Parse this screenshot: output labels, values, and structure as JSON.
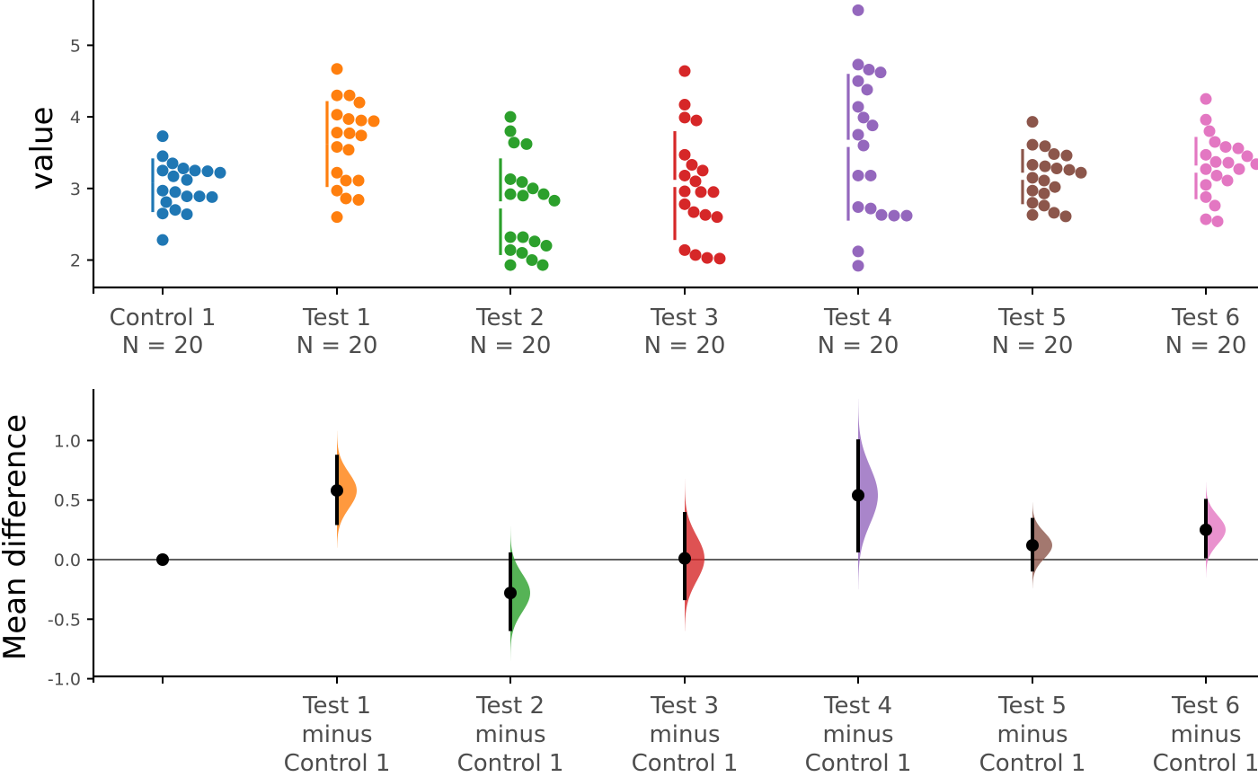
{
  "chart_data": [
    {
      "type": "scatter",
      "ylabel": "value",
      "ylim": [
        1.6,
        5.55
      ],
      "yticks": [
        2,
        3,
        4,
        5
      ],
      "grid": false,
      "categories": [
        {
          "name": "Control 1",
          "n_label": "N = 20",
          "color": "#1f77b4",
          "gap_bar": [
            2.67,
            3.08,
            3.08,
            3.42
          ],
          "values": [
            3.73,
            3.45,
            3.35,
            3.22,
            3.17,
            3.12,
            2.97,
            2.88,
            2.81,
            2.64,
            2.28,
            3.24,
            3.25,
            3.28,
            3.25,
            2.95,
            2.89,
            2.7,
            2.65,
            2.89
          ]
        },
        {
          "name": "Test 1",
          "n_label": "N = 20",
          "color": "#ff7f0e",
          "gap_bar": [
            3.02,
            3.62,
            3.62,
            4.22
          ],
          "values": [
            4.67,
            4.3,
            4.2,
            4.03,
            3.94,
            3.74,
            3.54,
            3.22,
            3.11,
            2.97,
            2.84,
            2.6,
            4.3,
            3.95,
            3.77,
            3.58,
            3.11,
            2.86,
            3.97,
            3.78
          ]
        },
        {
          "name": "Test 2",
          "n_label": "N = 20",
          "color": "#2ca02c",
          "gap_bar": [
            2.07,
            2.72,
            2.82,
            3.42
          ],
          "values": [
            4.0,
            3.8,
            3.62,
            3.09,
            3.0,
            2.83,
            2.2,
            2.1,
            1.93,
            3.64,
            3.13,
            2.9,
            2.26,
            2.14,
            2.0,
            1.93,
            2.92,
            2.32,
            2.92,
            2.32
          ]
        },
        {
          "name": "Test 3",
          "n_label": "N = 20",
          "color": "#d62728",
          "gap_bar": [
            2.28,
            3.02,
            3.12,
            3.8
          ],
          "values": [
            4.64,
            4.17,
            3.95,
            3.47,
            3.25,
            3.1,
            2.95,
            2.78,
            2.6,
            2.02,
            3.99,
            3.33,
            2.07,
            3.18,
            2.95,
            2.63,
            2.03,
            2.14,
            2.96,
            2.67
          ]
        },
        {
          "name": "Test 4",
          "n_label": "N = 20",
          "color": "#9467bd",
          "gap_bar": [
            2.55,
            3.58,
            3.68,
            4.6
          ],
          "values": [
            5.49,
            4.73,
            4.62,
            4.5,
            4.38,
            4.14,
            3.99,
            3.88,
            3.75,
            3.6,
            3.18,
            2.72,
            2.62,
            2.12,
            1.92,
            4.66,
            3.18,
            2.74,
            2.62,
            2.63
          ]
        },
        {
          "name": "Test 5",
          "n_label": "N = 20",
          "color": "#8c564b",
          "gap_bar": [
            2.78,
            3.12,
            3.22,
            3.55
          ],
          "values": [
            3.93,
            3.59,
            3.46,
            3.33,
            3.22,
            3.11,
            2.93,
            2.76,
            2.61,
            3.26,
            3.15,
            2.97,
            2.8,
            3.61,
            3.48,
            2.63,
            3.28,
            3.02,
            2.66,
            3.31
          ]
        },
        {
          "name": "Test 6",
          "n_label": "N = 20",
          "color": "#e377c2",
          "gap_bar": [
            2.85,
            3.22,
            3.32,
            3.72
          ],
          "values": [
            4.25,
            3.96,
            3.8,
            3.65,
            3.56,
            3.47,
            3.36,
            3.27,
            3.18,
            3.05,
            2.88,
            2.76,
            2.54,
            3.45,
            3.27,
            3.11,
            2.57,
            3.34,
            3.58,
            3.37
          ]
        }
      ]
    },
    {
      "type": "scatter",
      "ylabel": "Mean difference",
      "ylim": [
        -1.0,
        1.45
      ],
      "yticks": [
        1.0,
        0.5,
        0.0,
        -0.5,
        -1.0
      ],
      "ytick_labels": [
        "1.0",
        "0.5",
        "0.0",
        "-0.5",
        "-1.0"
      ],
      "zero_line": true,
      "reference": {
        "name": "Control 1",
        "value": 0.0
      },
      "comparisons": [
        {
          "name": "Test 1 minus Control 1",
          "lines": [
            "Test 1",
            "minus",
            "Control 1"
          ],
          "color": "#ff7f0e",
          "mean_diff": 0.58,
          "ci": [
            0.29,
            0.88
          ],
          "dist_range": [
            0.1,
            1.08
          ],
          "dist_sd": 0.15
        },
        {
          "name": "Test 2 minus Control 1",
          "lines": [
            "Test 2",
            "minus",
            "Control 1"
          ],
          "color": "#2ca02c",
          "mean_diff": -0.28,
          "ci": [
            -0.6,
            0.06
          ],
          "dist_range": [
            -0.85,
            0.28
          ],
          "dist_sd": 0.16
        },
        {
          "name": "Test 3 minus Control 1",
          "lines": [
            "Test 3",
            "minus",
            "Control 1"
          ],
          "color": "#d62728",
          "mean_diff": 0.01,
          "ci": [
            -0.34,
            0.4
          ],
          "dist_range": [
            -0.6,
            0.68
          ],
          "dist_sd": 0.19
        },
        {
          "name": "Test 4 minus Control 1",
          "lines": [
            "Test 4",
            "minus",
            "Control 1"
          ],
          "color": "#9467bd",
          "mean_diff": 0.54,
          "ci": [
            0.06,
            1.01
          ],
          "dist_range": [
            -0.25,
            1.35
          ],
          "dist_sd": 0.24
        },
        {
          "name": "Test 5 minus Control 1",
          "lines": [
            "Test 5",
            "minus",
            "Control 1"
          ],
          "color": "#8c564b",
          "mean_diff": 0.12,
          "ci": [
            -0.1,
            0.35
          ],
          "dist_range": [
            -0.24,
            0.48
          ],
          "dist_sd": 0.11
        },
        {
          "name": "Test 6 minus Control 1",
          "lines": [
            "Test 6",
            "minus",
            "Control 1"
          ],
          "color": "#e377c2",
          "mean_diff": 0.25,
          "ci": [
            0.01,
            0.51
          ],
          "dist_range": [
            -0.15,
            0.65
          ],
          "dist_sd": 0.12
        }
      ]
    }
  ]
}
